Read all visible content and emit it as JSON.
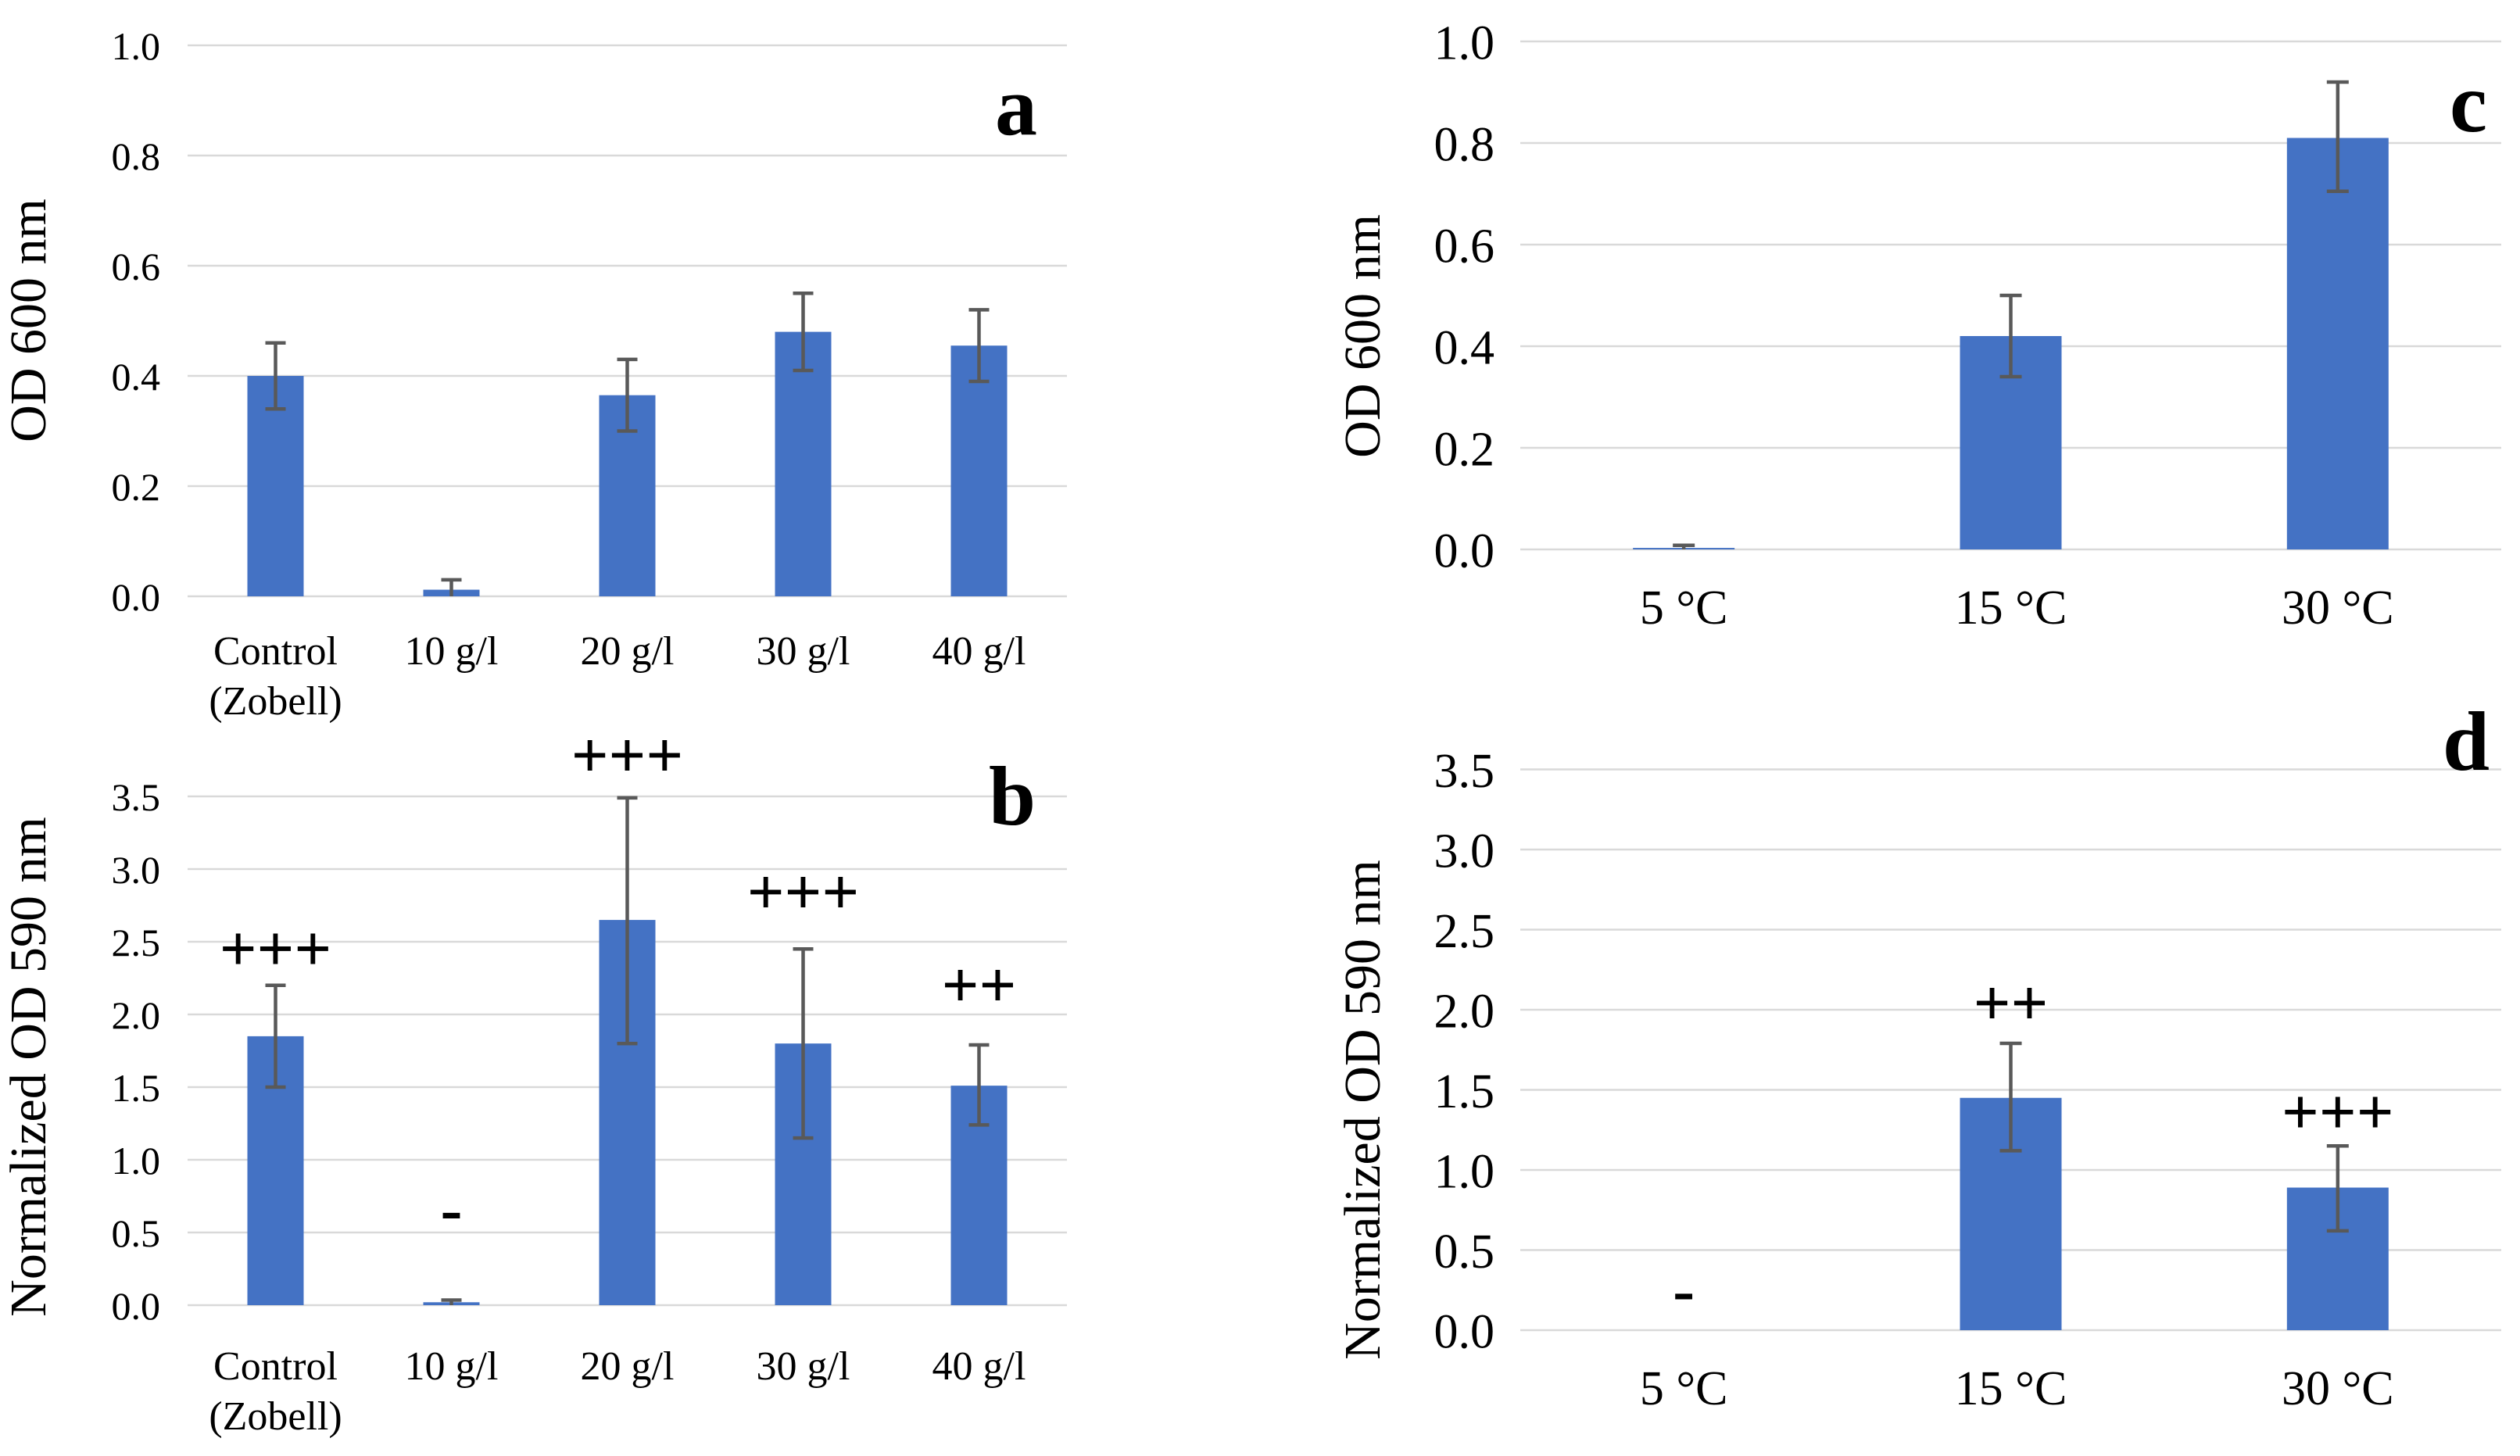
{
  "figure_title": "",
  "colors": {
    "bar": "#4472c4",
    "error_bar": "#595959",
    "gridline": "#d9d9d9",
    "text": "#000000",
    "background": "#ffffff"
  },
  "chart_data": [
    {
      "type": "bar",
      "panel_letter": "a",
      "ylabel": "OD 600 nm",
      "xlabel": "",
      "categories": [
        "Control\n(Zobell)",
        "10 g/l",
        "20 g/l",
        "30 g/l",
        "40 g/l"
      ],
      "values": [
        0.4,
        0.012,
        0.365,
        0.48,
        0.455
      ],
      "error_low": [
        0.34,
        0.0,
        0.3,
        0.41,
        0.39
      ],
      "error_high": [
        0.46,
        0.03,
        0.43,
        0.55,
        0.52
      ],
      "annotations": [
        null,
        null,
        null,
        null,
        null
      ],
      "ylim": [
        0,
        1.0
      ],
      "ytick_step": 0.2,
      "ytick_labels": [
        "0.0",
        "0.2",
        "0.4",
        "0.6",
        "0.8",
        "1.0"
      ],
      "grid": true,
      "legend": null
    },
    {
      "type": "bar",
      "panel_letter": "b",
      "ylabel": "Normalized OD 590 nm",
      "xlabel": "",
      "categories": [
        "Control\n(Zobell)",
        "10 g/l",
        "20 g/l",
        "30 g/l",
        "40 g/l"
      ],
      "values": [
        1.85,
        0.02,
        2.65,
        1.8,
        1.51
      ],
      "error_low": [
        1.5,
        0.0,
        1.8,
        1.15,
        1.24
      ],
      "error_high": [
        2.2,
        0.035,
        3.49,
        2.45,
        1.79
      ],
      "annotations": [
        {
          "text": "+++",
          "y": 2.45
        },
        {
          "text": "-",
          "y": 0.66
        },
        {
          "text": "+++",
          "y": 3.78
        },
        {
          "text": "+++",
          "y": 2.84
        },
        {
          "text": "++",
          "y": 2.2
        }
      ],
      "ylim": [
        0,
        3.5
      ],
      "ytick_step": 0.5,
      "ytick_labels": [
        "0.0",
        "0.5",
        "1.0",
        "1.5",
        "2.0",
        "2.5",
        "3.0",
        "3.5"
      ],
      "grid": true,
      "legend": null
    },
    {
      "type": "bar",
      "panel_letter": "c",
      "ylabel": "OD 600 nm",
      "xlabel": "",
      "categories": [
        "5 °C",
        "15 °C",
        "30 °C"
      ],
      "values": [
        0.003,
        0.42,
        0.81
      ],
      "error_low": [
        0.0,
        0.34,
        0.705
      ],
      "error_high": [
        0.008,
        0.5,
        0.92
      ],
      "annotations": [
        null,
        null,
        null
      ],
      "ylim": [
        0,
        1.0
      ],
      "ytick_step": 0.2,
      "ytick_labels": [
        "0.0",
        "0.2",
        "0.4",
        "0.6",
        "0.8",
        "1.0"
      ],
      "grid": true,
      "legend": null
    },
    {
      "type": "bar",
      "panel_letter": "d",
      "ylabel": "Normalized OD 590 nm",
      "xlabel": "",
      "categories": [
        "5 °C",
        "15 °C",
        "30 °C"
      ],
      "values": [
        0.0,
        1.45,
        0.89
      ],
      "error_low": [
        null,
        1.12,
        0.62
      ],
      "error_high": [
        null,
        1.79,
        1.15
      ],
      "annotations": [
        {
          "text": "-",
          "y": 0.25
        },
        {
          "text": "++",
          "y": 2.04
        },
        {
          "text": "+++",
          "y": 1.36
        }
      ],
      "ylim": [
        0,
        3.5
      ],
      "ytick_step": 0.5,
      "ytick_labels": [
        "0.0",
        "0.5",
        "1.0",
        "1.5",
        "2.0",
        "2.5",
        "3.0",
        "3.5"
      ],
      "grid": true,
      "legend": null
    }
  ]
}
